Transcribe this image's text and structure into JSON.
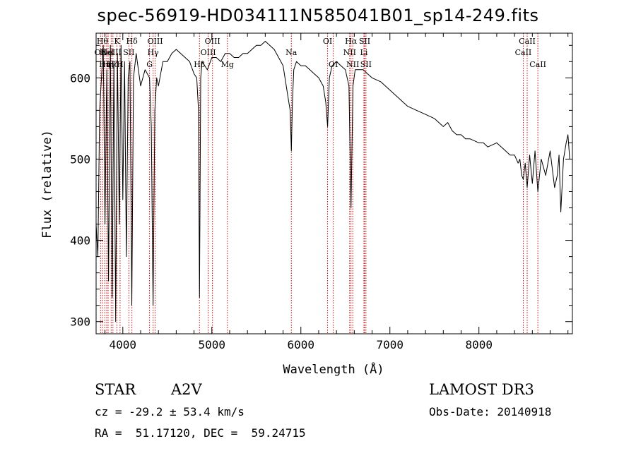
{
  "header": {
    "title": "spec-56919-HD034111N585041B01_sp14-249.fits"
  },
  "info": {
    "object_class": "STAR",
    "subclass": "A2V",
    "survey": "LAMOST DR3",
    "cz": "cz = -29.2 ± 53.4 km/s",
    "obs_date": "Obs-Date: 20140918",
    "coords": "RA =  51.17120, DEC =  59.24715"
  },
  "chart_data": {
    "type": "line",
    "xlabel": "Wavelength (Å)",
    "ylabel": "Flux (relative)",
    "xlim": [
      3700,
      9050
    ],
    "ylim": [
      285,
      655
    ],
    "x_ticks": [
      4000,
      5000,
      6000,
      7000,
      8000
    ],
    "x_tick_labels": [
      "4000",
      "5000",
      "6000",
      "7000",
      "8000"
    ],
    "y_ticks": [
      300,
      400,
      500,
      600
    ],
    "y_tick_labels": [
      "300",
      "400",
      "500",
      "600"
    ],
    "x_minor_step": 200,
    "y_minor_step": 20,
    "line_color": "#000000",
    "marker_color": "#cc0000",
    "series": [
      {
        "x": [
          3700,
          3720,
          3740,
          3760,
          3780,
          3800,
          3820,
          3840,
          3860,
          3880,
          3900,
          3920,
          3940,
          3960,
          3980,
          4000,
          4020,
          4040,
          4060,
          4080,
          4101,
          4120,
          4150,
          4200,
          4250,
          4300,
          4320,
          4340,
          4360,
          4380,
          4400,
          4450,
          4500,
          4550,
          4600,
          4650,
          4700,
          4750,
          4800,
          4830,
          4850,
          4861,
          4875,
          4890,
          4920,
          4950,
          5000,
          5050,
          5100,
          5150,
          5200,
          5250,
          5300,
          5350,
          5400,
          5450,
          5500,
          5550,
          5600,
          5650,
          5700,
          5750,
          5800,
          5850,
          5880,
          5893,
          5905,
          5920,
          5950,
          6000,
          6050,
          6100,
          6150,
          6200,
          6250,
          6280,
          6300,
          6320,
          6350,
          6400,
          6450,
          6500,
          6540,
          6563,
          6585,
          6610,
          6650,
          6700,
          6750,
          6800,
          6900,
          7000,
          7100,
          7200,
          7300,
          7400,
          7500,
          7600,
          7650,
          7700,
          7750,
          7800,
          7850,
          7900,
          8000,
          8050,
          8100,
          8200,
          8300,
          8350,
          8400,
          8440,
          8460,
          8480,
          8498,
          8520,
          8542,
          8570,
          8600,
          8630,
          8662,
          8700,
          8750,
          8800,
          8850,
          8880,
          8900,
          8920,
          8950,
          8980,
          9000,
          9020
        ],
        "y": [
          420,
          380,
          560,
          600,
          640,
          420,
          610,
          350,
          640,
          330,
          620,
          300,
          630,
          420,
          640,
          450,
          620,
          380,
          600,
          620,
          320,
          600,
          630,
          590,
          610,
          600,
          540,
          320,
          560,
          600,
          590,
          620,
          620,
          630,
          635,
          630,
          625,
          620,
          605,
          600,
          560,
          330,
          600,
          620,
          615,
          610,
          625,
          625,
          620,
          630,
          630,
          625,
          625,
          630,
          630,
          635,
          640,
          640,
          645,
          640,
          635,
          625,
          615,
          580,
          560,
          510,
          570,
          610,
          620,
          615,
          615,
          610,
          605,
          600,
          590,
          570,
          540,
          600,
          615,
          620,
          615,
          610,
          590,
          440,
          590,
          610,
          610,
          610,
          605,
          600,
          595,
          585,
          575,
          565,
          560,
          555,
          550,
          540,
          545,
          535,
          530,
          530,
          525,
          525,
          520,
          520,
          515,
          520,
          510,
          505,
          505,
          495,
          500,
          480,
          475,
          495,
          465,
          505,
          470,
          510,
          460,
          500,
          480,
          510,
          465,
          480,
          505,
          435,
          500,
          520,
          530,
          500
        ]
      }
    ],
    "lines": [
      {
        "x": 3750,
        "label": "OII",
        "row": 1
      },
      {
        "x": 3771,
        "label": "Hθ",
        "row": 0
      },
      {
        "x": 3797,
        "label": "Hη",
        "row": 2
      },
      {
        "x": 3819,
        "label": "HeI",
        "row": 1
      },
      {
        "x": 3835,
        "label": "Hη",
        "row": 2
      },
      {
        "x": 3869,
        "label": "NeIII",
        "row": 1
      },
      {
        "x": 3889,
        "label": "Hζ",
        "row": 2
      },
      {
        "x": 3934,
        "label": "K",
        "row": 0
      },
      {
        "x": 3969,
        "label": "H",
        "row": 2
      },
      {
        "x": 4068,
        "label": "SII",
        "row": 1
      },
      {
        "x": 4102,
        "label": "Hδ",
        "row": 0
      },
      {
        "x": 4300,
        "label": "G",
        "row": 2
      },
      {
        "x": 4340,
        "label": "Hγ",
        "row": 1
      },
      {
        "x": 4363,
        "label": "OIII",
        "row": 0
      },
      {
        "x": 4861,
        "label": "Hβ",
        "row": 2
      },
      {
        "x": 4959,
        "label": "OIII",
        "row": 1
      },
      {
        "x": 5007,
        "label": "OIII",
        "row": 0
      },
      {
        "x": 5175,
        "label": "Mg",
        "row": 2
      },
      {
        "x": 5893,
        "label": "Na",
        "row": 1
      },
      {
        "x": 6300,
        "label": "OI",
        "row": 0
      },
      {
        "x": 6364,
        "label": "OI",
        "row": 2
      },
      {
        "x": 6548,
        "label": "NII",
        "row": 1
      },
      {
        "x": 6563,
        "label": "Hα",
        "row": 0
      },
      {
        "x": 6583,
        "label": "NII",
        "row": 2
      },
      {
        "x": 6708,
        "label": "Li",
        "row": 1
      },
      {
        "x": 6716,
        "label": "SII",
        "row": 0
      },
      {
        "x": 6731,
        "label": "SII",
        "row": 2
      },
      {
        "x": 8498,
        "label": "CaII",
        "row": 1
      },
      {
        "x": 8542,
        "label": "CaII",
        "row": 0
      },
      {
        "x": 8662,
        "label": "CaII",
        "row": 2
      }
    ]
  }
}
